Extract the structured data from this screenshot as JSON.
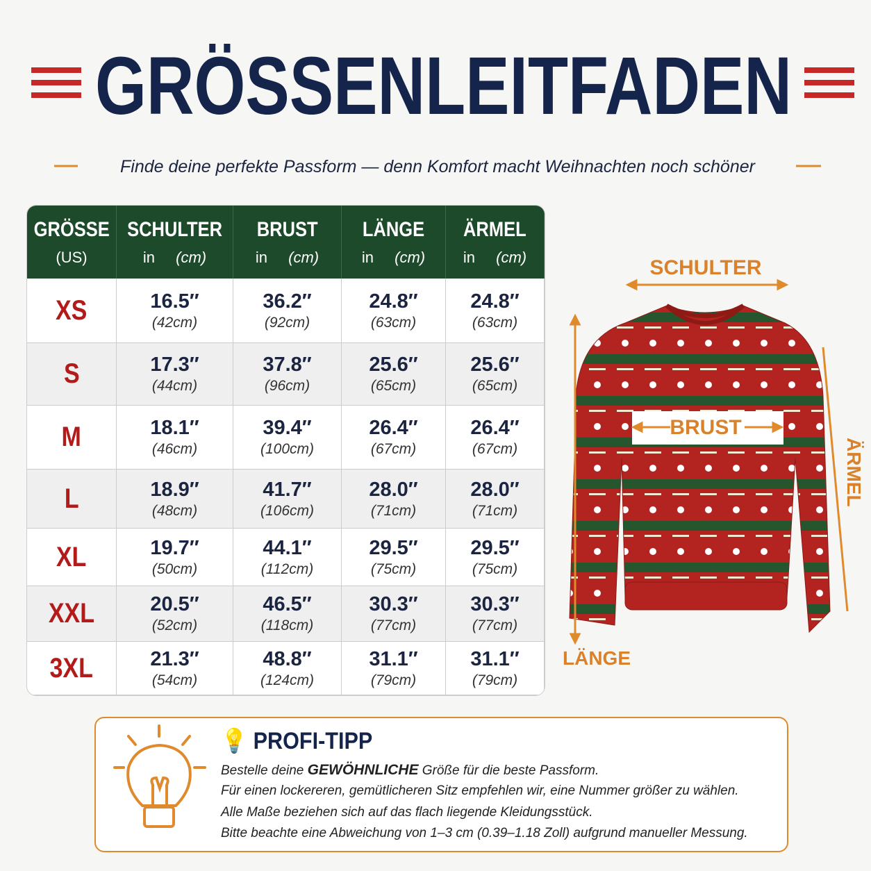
{
  "header": {
    "title": "GRÖSSENLEITFADEN",
    "subtitle": "Finde deine perfekte Passform — denn Komfort macht Weihnachten noch schöner"
  },
  "table": {
    "headers": [
      {
        "label": "GRÖSSE",
        "sub": [
          "(US)"
        ]
      },
      {
        "label": "SCHULTER",
        "sub": [
          "in",
          "(cm)"
        ]
      },
      {
        "label": "BRUST",
        "sub": [
          "in",
          "(cm)"
        ]
      },
      {
        "label": "LÄNGE",
        "sub": [
          "in",
          "(cm)"
        ]
      },
      {
        "label": "ÄRMEL",
        "sub": [
          "in",
          "(cm)"
        ]
      }
    ],
    "rows": [
      {
        "size": "XS",
        "cells": [
          [
            "16.5″",
            "(42cm)"
          ],
          [
            "36.2″",
            "(92cm)"
          ],
          [
            "24.8″",
            "(63cm)"
          ],
          [
            "24.8″",
            "(63cm)"
          ]
        ]
      },
      {
        "size": "S",
        "cells": [
          [
            "17.3″",
            "(44cm)"
          ],
          [
            "37.8″",
            "(96cm)"
          ],
          [
            "25.6″",
            "(65cm)"
          ],
          [
            "25.6″",
            "(65cm)"
          ]
        ]
      },
      {
        "size": "M",
        "cells": [
          [
            "18.1″",
            "(46cm)"
          ],
          [
            "39.4″",
            "(100cm)"
          ],
          [
            "26.4″",
            "(67cm)"
          ],
          [
            "26.4″",
            "(67cm)"
          ]
        ]
      },
      {
        "size": "L",
        "cells": [
          [
            "18.9″",
            "(48cm)"
          ],
          [
            "41.7″",
            "(106cm)"
          ],
          [
            "28.0″",
            "(71cm)"
          ],
          [
            "28.0″",
            "(71cm)"
          ]
        ]
      },
      {
        "size": "XL",
        "cells": [
          [
            "19.7″",
            "(50cm)"
          ],
          [
            "44.1″",
            "(112cm)"
          ],
          [
            "29.5″",
            "(75cm)"
          ],
          [
            "29.5″",
            "(75cm)"
          ]
        ]
      },
      {
        "size": "XXL",
        "cells": [
          [
            "20.5″",
            "(52cm)"
          ],
          [
            "46.5″",
            "(118cm)"
          ],
          [
            "30.3″",
            "(77cm)"
          ],
          [
            "30.3″",
            "(77cm)"
          ]
        ]
      },
      {
        "size": "3XL",
        "cells": [
          [
            "21.3″",
            "(54cm)"
          ],
          [
            "48.8″",
            "(124cm)"
          ],
          [
            "31.1″",
            "(79cm)"
          ],
          [
            "31.1″",
            "(79cm)"
          ]
        ]
      }
    ]
  },
  "diagram": {
    "shoulder": "SCHULTER",
    "chest": "BRUST",
    "sleeve": "ÄRMEL",
    "length": "LÄNGE"
  },
  "tip": {
    "title": "PROFI-TIPP",
    "line1": [
      "Bestelle deine ",
      "GEWÖHNLICHE",
      " Größe für die beste Passform."
    ],
    "lines": [
      "Für einen lockereren, gemütlicheren Sitz empfehlen wir, eine Nummer größer zu wählen.",
      "Alle Maße beziehen sich auf das flach liegende Kleidungsstück.",
      "Bitte beachte eine Abweichung von 1–3 cm (0.39–1.18 Zoll) aufgrund manueller Messung."
    ]
  }
}
